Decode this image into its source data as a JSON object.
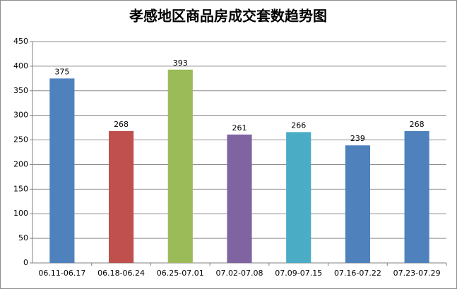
{
  "chart_data": {
    "type": "bar",
    "title": "孝感地区商品房成交套数趋势图",
    "categories": [
      "06.11-06.17",
      "06.18-06.24",
      "06.25-07.01",
      "07.02-07.08",
      "07.09-07.15",
      "07.16-07.22",
      "07.23-07.29"
    ],
    "values": [
      375,
      268,
      393,
      261,
      266,
      239,
      268
    ],
    "colors": [
      "#4f81bd",
      "#c0504d",
      "#9bbb59",
      "#8064a2",
      "#4bacc6",
      "#4f81bd",
      "#4f81bd"
    ],
    "ylim": [
      0,
      450
    ],
    "yticks": [
      0,
      50,
      100,
      150,
      200,
      250,
      300,
      350,
      400,
      450
    ],
    "grid": true
  }
}
